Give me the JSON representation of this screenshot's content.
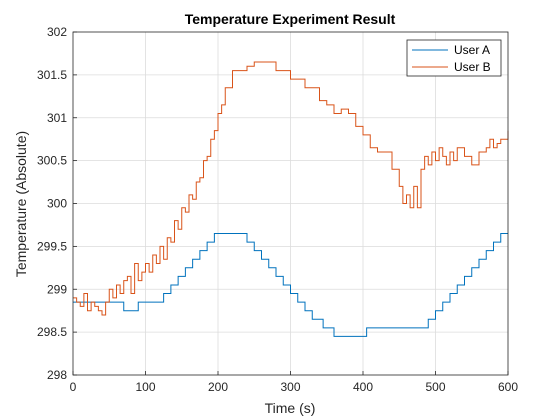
{
  "chart_data": {
    "type": "line",
    "title": "Temperature Experiment Result",
    "xlabel": "Time (s)",
    "ylabel": "Temperature (Absolute)",
    "xlim": [
      0,
      600
    ],
    "ylim": [
      298,
      302
    ],
    "xticks": [
      0,
      100,
      200,
      300,
      400,
      500,
      600
    ],
    "yticks": [
      298,
      298.5,
      299,
      299.5,
      300,
      300.5,
      301,
      301.5,
      302
    ],
    "grid": true,
    "legend_position": "top-right",
    "series": [
      {
        "name": "User A",
        "color": "#0072BD",
        "x": [
          0,
          50,
          70,
          90,
          110,
          125,
          135,
          145,
          155,
          165,
          175,
          185,
          195,
          205,
          240,
          250,
          260,
          270,
          280,
          290,
          300,
          310,
          320,
          330,
          345,
          360,
          400,
          405,
          480,
          490,
          500,
          510,
          520,
          530,
          540,
          550,
          560,
          570,
          580,
          590,
          600
        ],
        "y": [
          298.85,
          298.85,
          298.75,
          298.85,
          298.85,
          298.95,
          299.05,
          299.15,
          299.25,
          299.35,
          299.45,
          299.55,
          299.65,
          299.65,
          299.55,
          299.45,
          299.35,
          299.25,
          299.15,
          299.05,
          298.95,
          298.85,
          298.75,
          298.65,
          298.55,
          298.45,
          298.45,
          298.55,
          298.55,
          298.65,
          298.75,
          298.85,
          298.95,
          299.05,
          299.15,
          299.25,
          299.35,
          299.45,
          299.55,
          299.65,
          299.65
        ]
      },
      {
        "name": "User B",
        "color": "#D95319",
        "x": [
          0,
          5,
          10,
          15,
          20,
          25,
          30,
          35,
          40,
          45,
          50,
          55,
          60,
          65,
          70,
          75,
          80,
          85,
          90,
          95,
          100,
          105,
          110,
          115,
          120,
          125,
          130,
          135,
          140,
          145,
          150,
          155,
          160,
          165,
          170,
          175,
          180,
          185,
          190,
          195,
          200,
          205,
          210,
          220,
          230,
          240,
          250,
          260,
          270,
          280,
          290,
          300,
          310,
          320,
          330,
          340,
          350,
          360,
          370,
          380,
          390,
          400,
          410,
          420,
          430,
          440,
          450,
          455,
          460,
          465,
          470,
          475,
          480,
          485,
          490,
          495,
          500,
          505,
          510,
          515,
          520,
          525,
          530,
          540,
          550,
          560,
          570,
          575,
          580,
          585,
          590,
          595,
          600
        ],
        "y": [
          298.9,
          298.85,
          298.8,
          298.95,
          298.75,
          298.85,
          298.8,
          298.75,
          298.7,
          298.85,
          299,
          298.9,
          299.05,
          298.95,
          299.1,
          299.15,
          298.95,
          299.3,
          299.1,
          299.2,
          299.3,
          299.2,
          299.4,
          299.3,
          299.5,
          299.35,
          299.6,
          299.55,
          299.8,
          299.7,
          299.95,
          299.9,
          300.1,
          300.05,
          300.25,
          300.3,
          300.5,
          300.55,
          300.75,
          300.85,
          301.05,
          301.15,
          301.35,
          301.55,
          301.55,
          301.6,
          301.65,
          301.65,
          301.65,
          301.55,
          301.55,
          301.45,
          301.45,
          301.35,
          301.35,
          301.2,
          301.15,
          301.05,
          301.1,
          301.05,
          300.9,
          300.8,
          300.65,
          300.6,
          300.6,
          300.4,
          300.2,
          300.0,
          300.1,
          299.95,
          300.2,
          299.95,
          300.4,
          300.55,
          300.45,
          300.6,
          300.5,
          300.65,
          300.55,
          300.45,
          300.6,
          300.5,
          300.65,
          300.55,
          300.45,
          300.6,
          300.65,
          300.75,
          300.65,
          300.7,
          300.75,
          300.75,
          300.85
        ]
      }
    ]
  }
}
